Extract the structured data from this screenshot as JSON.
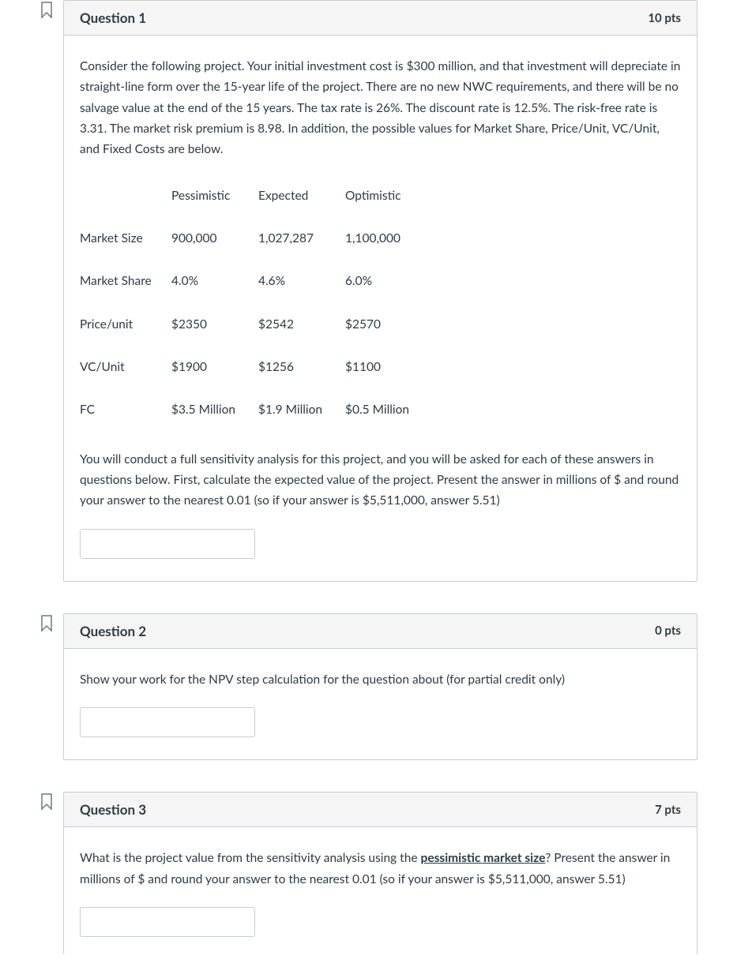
{
  "questions": [
    {
      "title": "Question 1",
      "pts": "10 pts",
      "paras": [
        "Consider the following project. Your initial investment cost is $300 million, and that investment will depreciate in straight-line form over the 15-year life of the project. There are no new NWC requirements, and there will be no salvage value at the end of the 15 years. The tax rate is 26%. The discount rate is 12.5%. The risk-free rate is 3.31. The market risk premium is 8.98. In addition, the possible values for Market Share, Price/Unit, VC/Unit, and Fixed Costs are below."
      ],
      "table": {
        "headers": [
          "",
          "Pessimistic",
          "Expected",
          "Optimistic"
        ],
        "rows": [
          [
            "Market Size",
            "900,000",
            "1,027,287",
            "1,100,000"
          ],
          [
            "Market Share",
            "4.0%",
            "4.6%",
            "6.0%"
          ],
          [
            "Price/unit",
            "$2350",
            "$2542",
            "$2570"
          ],
          [
            "VC/Unit",
            "$1900",
            "$1256",
            "$1100"
          ],
          [
            "FC",
            "$3.5 Million",
            "$1.9 Million",
            "$0.5 Million"
          ]
        ]
      },
      "paras2": [
        "You will conduct a full sensitivity analysis for this project, and you will be asked for each of these answers in questions below. First, calculate the expected value of the project. Present the answer in millions of $ and round your answer to the nearest 0.01 (so if your answer is $5,511,000, answer 5.51)"
      ]
    },
    {
      "title": "Question 2",
      "pts": "0 pts",
      "paras": [
        "Show your work for the NPV step calculation for the question about (for partial credit only)"
      ]
    },
    {
      "title": "Question 3",
      "pts": "7 pts",
      "html": "What is the project value from the sensitivity analysis using the <u class=\"strong\">pessimistic market size</u>? Present the answer in millions of $ and round your answer to the nearest 0.01 (so if your answer is $5,511,000, answer 5.51)"
    }
  ]
}
